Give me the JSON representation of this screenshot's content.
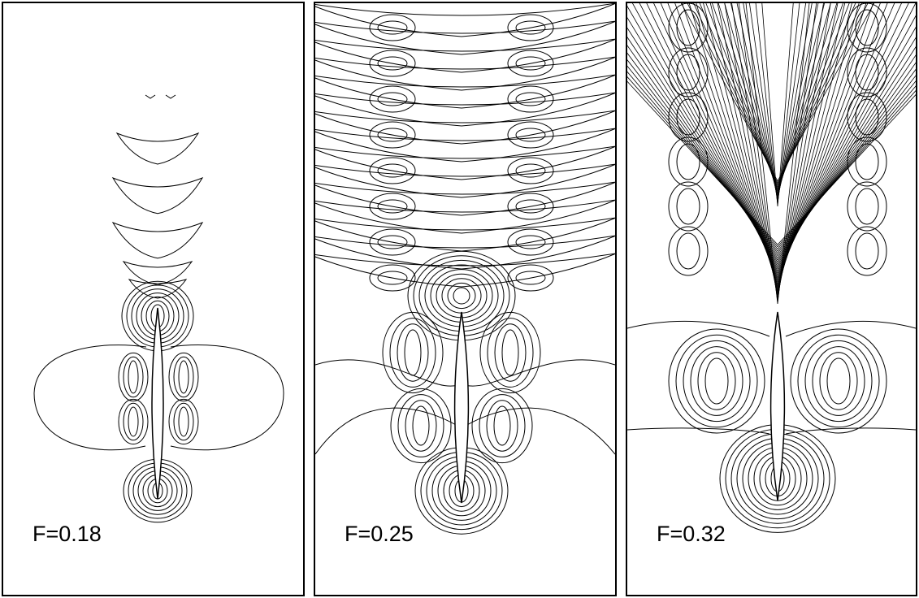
{
  "panels": [
    {
      "label": "F=0.18",
      "froude": 0.18
    },
    {
      "label": "F=0.25",
      "froude": 0.25
    },
    {
      "label": "F=0.32",
      "froude": 0.32
    }
  ]
}
